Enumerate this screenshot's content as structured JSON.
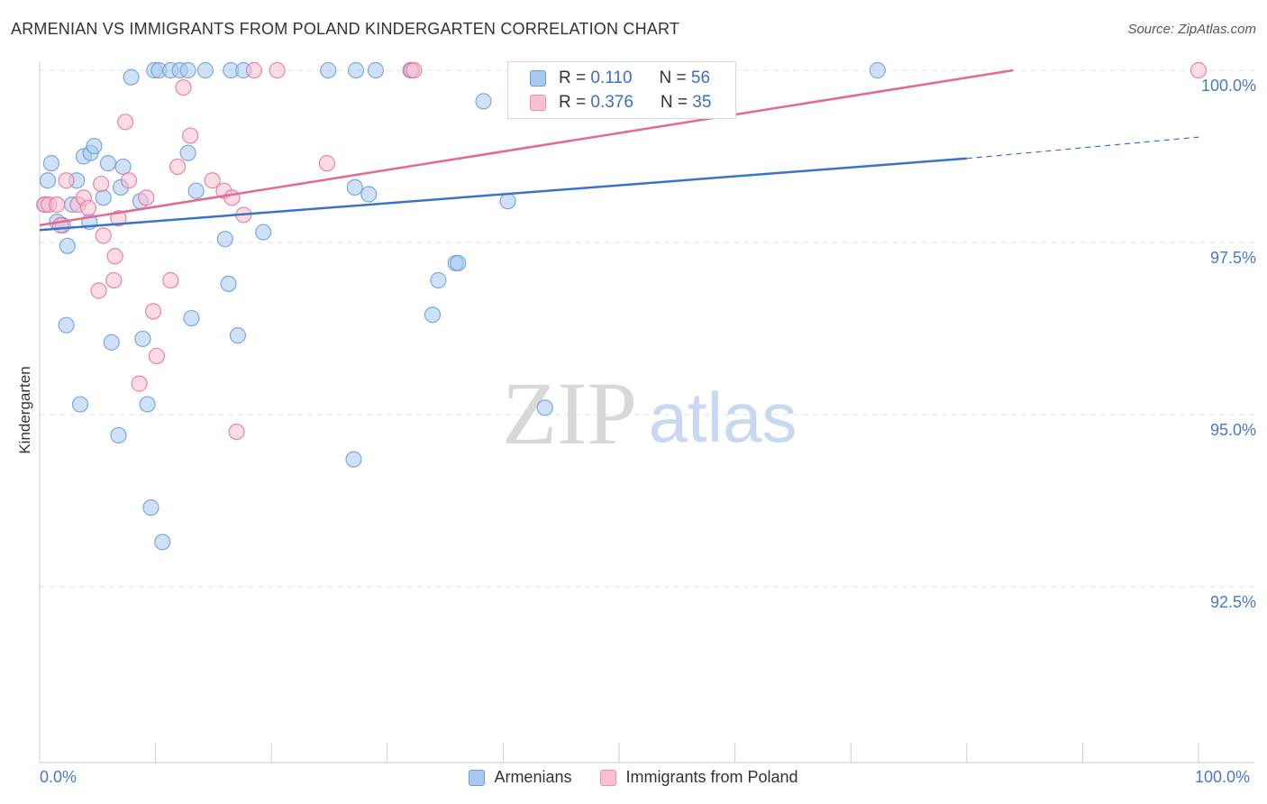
{
  "title": "ARMENIAN VS IMMIGRANTS FROM POLAND KINDERGARTEN CORRELATION CHART",
  "source": "Source: ZipAtlas.com",
  "watermark": {
    "zip": "ZIP",
    "atlas": "atlas"
  },
  "legend_top": {
    "rows": [
      {
        "r_label": "R = ",
        "r_value": "0.110",
        "n_label": "N = ",
        "n_value": "56",
        "color": "#a8c8f0",
        "border": "#6a9ad8"
      },
      {
        "r_label": "R = ",
        "r_value": "0.376",
        "n_label": "N = ",
        "n_value": "35",
        "color": "#f8c0d0",
        "border": "#e890a8"
      }
    ]
  },
  "legend_bottom": [
    {
      "label": "Armenians",
      "color": "#a8c8f0",
      "border": "#6a9ad8"
    },
    {
      "label": "Immigrants from Poland",
      "color": "#f8c0d0",
      "border": "#e890a8"
    }
  ],
  "chart_data": {
    "type": "scatter",
    "title": "ARMENIAN VS IMMIGRANTS FROM POLAND KINDERGARTEN CORRELATION CHART",
    "xlabel": "",
    "ylabel": "Kindergarten",
    "xlim": [
      0,
      100
    ],
    "ylim": [
      90.3,
      100.25
    ],
    "x_tick_labels": [
      "0.0%",
      "100.0%"
    ],
    "y_ticks": [
      92.5,
      95.0,
      97.5,
      100.0
    ],
    "y_tick_labels": [
      "92.5%",
      "95.0%",
      "97.5%",
      "100.0%"
    ],
    "series": [
      {
        "name": "Armenians",
        "color": "#6a9ad8",
        "fill": "#a8c8f0",
        "trend": {
          "x0": 0,
          "y0": 97.68,
          "x1": 80,
          "y1": 98.72,
          "x_dash_end": 100,
          "y_dash_end": 99.03
        },
        "points": [
          [
            0.5,
            98.05
          ],
          [
            0.7,
            98.4
          ],
          [
            1.0,
            98.65
          ],
          [
            1.5,
            97.8
          ],
          [
            2.0,
            97.75
          ],
          [
            2.3,
            96.3
          ],
          [
            2.4,
            97.45
          ],
          [
            2.8,
            98.05
          ],
          [
            3.2,
            98.4
          ],
          [
            3.5,
            95.15
          ],
          [
            3.8,
            98.75
          ],
          [
            4.4,
            98.8
          ],
          [
            4.7,
            98.9
          ],
          [
            4.3,
            97.8
          ],
          [
            5.5,
            98.15
          ],
          [
            5.9,
            98.65
          ],
          [
            6.2,
            96.05
          ],
          [
            7.0,
            98.3
          ],
          [
            6.8,
            94.7
          ],
          [
            7.2,
            98.6
          ],
          [
            7.9,
            99.9
          ],
          [
            8.7,
            98.1
          ],
          [
            8.9,
            96.1
          ],
          [
            9.3,
            95.15
          ],
          [
            9.6,
            93.65
          ],
          [
            9.9,
            100.0
          ],
          [
            10.3,
            100.0
          ],
          [
            10.6,
            93.15
          ],
          [
            11.3,
            100.0
          ],
          [
            12.1,
            100.0
          ],
          [
            12.8,
            100.0
          ],
          [
            12.8,
            98.8
          ],
          [
            13.1,
            96.4
          ],
          [
            13.5,
            98.25
          ],
          [
            14.3,
            100.0
          ],
          [
            16.5,
            100.0
          ],
          [
            17.6,
            100.0
          ],
          [
            16.3,
            96.9
          ],
          [
            16.0,
            97.55
          ],
          [
            17.1,
            96.15
          ],
          [
            19.3,
            97.65
          ],
          [
            24.9,
            100.0
          ],
          [
            27.2,
            98.3
          ],
          [
            27.3,
            100.0
          ],
          [
            27.1,
            94.35
          ],
          [
            28.4,
            98.2
          ],
          [
            29.0,
            100.0
          ],
          [
            33.9,
            96.45
          ],
          [
            34.4,
            96.95
          ],
          [
            35.9,
            97.2
          ],
          [
            36.1,
            97.2
          ],
          [
            38.3,
            99.55
          ],
          [
            40.4,
            98.1
          ],
          [
            43.6,
            95.1
          ],
          [
            72.3,
            100.0
          ],
          [
            32.0,
            100.0
          ]
        ]
      },
      {
        "name": "Immigrants from Poland",
        "color": "#e87098",
        "fill": "#f8c0d0",
        "trend": {
          "x0": 0,
          "y0": 97.75,
          "x1": 84,
          "y1": 100.0
        },
        "points": [
          [
            0.4,
            98.05
          ],
          [
            0.8,
            98.05
          ],
          [
            1.5,
            98.05
          ],
          [
            1.8,
            97.75
          ],
          [
            2.3,
            98.4
          ],
          [
            3.3,
            98.05
          ],
          [
            3.8,
            98.15
          ],
          [
            4.2,
            98.0
          ],
          [
            5.3,
            98.35
          ],
          [
            5.5,
            97.6
          ],
          [
            5.1,
            96.8
          ],
          [
            6.4,
            96.95
          ],
          [
            6.5,
            97.3
          ],
          [
            6.8,
            97.85
          ],
          [
            7.4,
            99.25
          ],
          [
            7.7,
            98.4
          ],
          [
            8.6,
            95.45
          ],
          [
            9.2,
            98.15
          ],
          [
            9.8,
            96.5
          ],
          [
            10.1,
            95.85
          ],
          [
            11.3,
            96.95
          ],
          [
            11.9,
            98.6
          ],
          [
            12.4,
            99.75
          ],
          [
            13.0,
            99.05
          ],
          [
            14.9,
            98.4
          ],
          [
            15.9,
            98.25
          ],
          [
            16.6,
            98.15
          ],
          [
            17.0,
            94.75
          ],
          [
            17.6,
            97.9
          ],
          [
            18.5,
            100.0
          ],
          [
            20.5,
            100.0
          ],
          [
            24.8,
            98.65
          ],
          [
            32.1,
            100.0
          ],
          [
            32.3,
            100.0
          ],
          [
            100.0,
            100.0
          ]
        ]
      }
    ],
    "grid": true,
    "legend_position": "top-center"
  }
}
